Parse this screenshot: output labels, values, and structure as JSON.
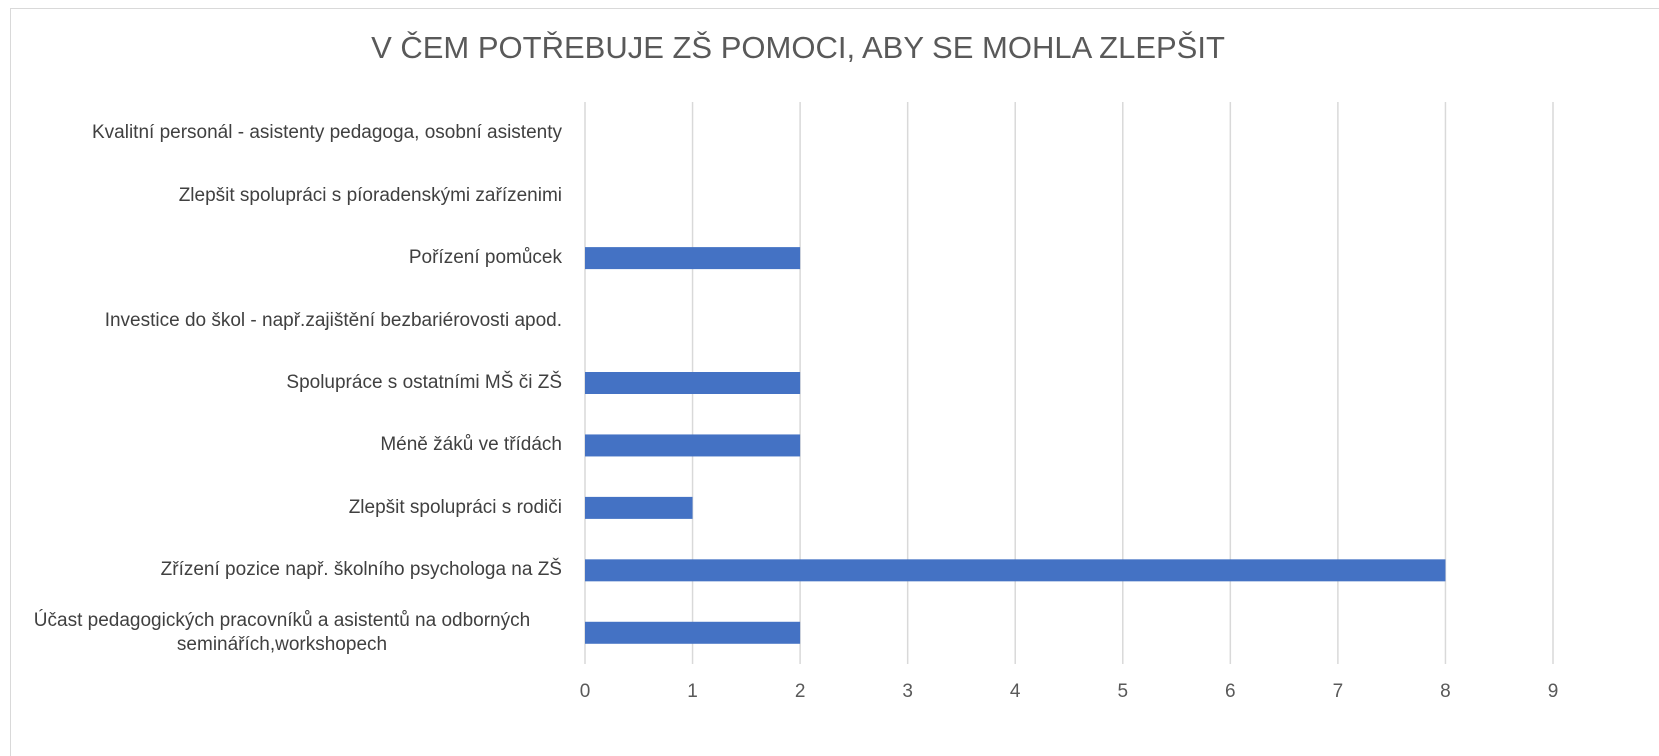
{
  "chart_data": {
    "type": "bar",
    "orientation": "horizontal",
    "title": "V ČEM POTŘEBUJE ZŠ POMOCI, ABY SE MOHLA ZLEPŠIT",
    "categories": [
      "Kvalitní personál - asistenty pedagoga, osobní asistenty",
      "Zlepšit spolupráci s píoradenskými zařízenimi",
      "Pořízení pomůcek",
      "Investice do škol - např.zajištění bezbariérovosti apod.",
      "Spolupráce s ostatními MŠ či ZŠ",
      "Méně žáků ve třídách",
      "Zlepšit spolupráci s rodiči",
      "Zřízení pozice např. školního psychologa na ZŠ",
      "Účast pedagogických pracovníků a asistentů na odborných seminářích,workshopech"
    ],
    "values": [
      0,
      0,
      2,
      0,
      2,
      2,
      1,
      8,
      2
    ],
    "color": "#4472c4",
    "xlim": [
      0,
      9
    ],
    "xticks": [
      0,
      1,
      2,
      3,
      4,
      5,
      6,
      7,
      8,
      9
    ],
    "grid": true
  }
}
